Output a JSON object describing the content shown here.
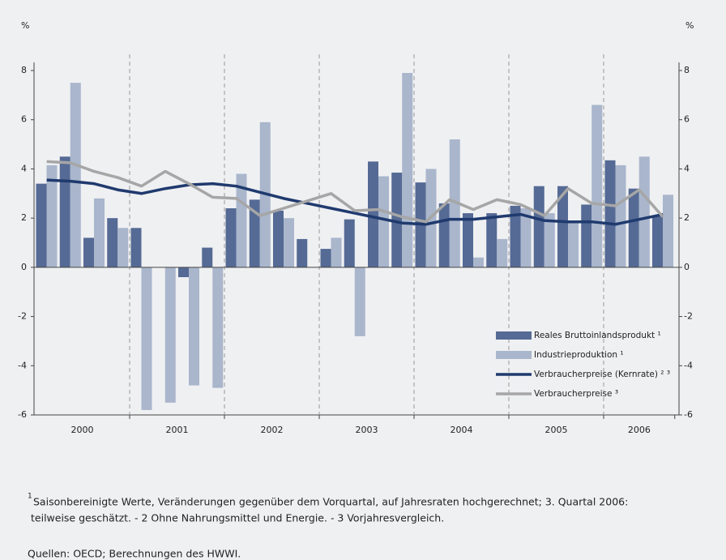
{
  "chart_data": {
    "type": "bar_line",
    "y_label": "%",
    "y2_label": "%",
    "categories": [
      null,
      null,
      null,
      null,
      null,
      null,
      null,
      null,
      null,
      null,
      null,
      null,
      null,
      null,
      null,
      null,
      null,
      null,
      null,
      null,
      null,
      null,
      null,
      null,
      null,
      null,
      null
    ],
    "x_groups": [
      "2000",
      "2001",
      "2002",
      "2003",
      "2004",
      "2005",
      "2006"
    ],
    "series": [
      {
        "name": "Reales Bruttoinlandsprodukt ¹",
        "kind": "bar",
        "color": "#556a94",
        "values": [
          3.4,
          4.5,
          1.2,
          2.0,
          1.6,
          0,
          -0.4,
          0.8,
          2.4,
          2.75,
          2.3,
          1.15,
          0.75,
          1.95,
          4.3,
          3.85,
          3.45,
          2.6,
          2.2,
          2.2,
          2.5,
          3.3,
          3.3,
          2.55,
          4.35,
          3.2,
          2.1
        ]
      },
      {
        "name": "Industrieproduktion ¹",
        "kind": "bar",
        "color": "#a9b6cc",
        "values": [
          4.15,
          7.5,
          2.8,
          1.6,
          -5.8,
          -5.5,
          -4.8,
          -4.9,
          3.8,
          5.9,
          2.0,
          0,
          1.2,
          -2.8,
          3.7,
          7.9,
          4.0,
          5.2,
          0.4,
          1.15,
          2.4,
          2.2,
          1.9,
          6.6,
          4.15,
          4.5,
          2.95
        ]
      },
      {
        "name": "Verbraucherpreise (Kernrate) ² ³",
        "kind": "line",
        "color": "#1f3a6e",
        "values": [
          3.55,
          3.5,
          3.4,
          3.15,
          3.0,
          3.2,
          3.35,
          3.4,
          3.3,
          3.05,
          2.8,
          2.6,
          2.4,
          2.2,
          2.0,
          1.8,
          1.75,
          1.95,
          1.95,
          2.05,
          2.15,
          1.9,
          1.85,
          1.85,
          1.75,
          1.95,
          2.15
        ]
      },
      {
        "name": "Verbraucherpreise ³",
        "kind": "line",
        "color": "#a6a6a6",
        "values": [
          4.3,
          4.25,
          3.9,
          3.65,
          3.3,
          3.9,
          3.4,
          2.85,
          2.8,
          2.1,
          2.4,
          2.7,
          3.0,
          2.3,
          2.35,
          2.05,
          1.85,
          2.75,
          2.35,
          2.75,
          2.55,
          2.1,
          3.2,
          2.6,
          2.5,
          3.15,
          2.05
        ]
      }
    ],
    "ylim": [
      -6,
      8
    ],
    "yticks": [
      -6,
      -4,
      -2,
      0,
      2,
      4,
      6,
      8
    ],
    "y2lim": [
      -6,
      8
    ],
    "y2ticks": [
      -6,
      -4,
      -2,
      0,
      2,
      4,
      6,
      8
    ],
    "footnote_mark": "1",
    "footnote": [
      "Saisonbereinigte Werte, Veränderungen gegenüber dem Vorquartal, auf Jahresraten hochgerechnet; 3. Quartal 2006:",
      "teilweise  geschätzt. - 2 Ohne Nahrungsmittel und Energie. - 3 Vorjahresvergleich."
    ],
    "source": "Quellen: OECD; Berechnungen des HWWI."
  }
}
